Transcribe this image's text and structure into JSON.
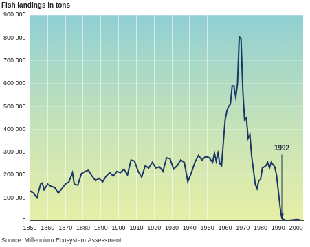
{
  "chart_data": {
    "type": "line",
    "title": "Fish landings in tons",
    "source": "Source: Millennium Ecosystem Assessment",
    "annotations": [
      {
        "text": "1992",
        "x": 1992
      }
    ],
    "series": [
      {
        "name": "Fish landings",
        "color": "#1c3567",
        "x": [
          1850,
          1852,
          1854,
          1856,
          1857,
          1858,
          1860,
          1862,
          1864,
          1866,
          1868,
          1870,
          1872,
          1874,
          1875,
          1877,
          1879,
          1881,
          1883,
          1885,
          1887,
          1889,
          1891,
          1893,
          1895,
          1897,
          1899,
          1901,
          1903,
          1905,
          1907,
          1909,
          1911,
          1913,
          1915,
          1917,
          1919,
          1921,
          1923,
          1925,
          1927,
          1929,
          1931,
          1933,
          1935,
          1937,
          1939,
          1941,
          1943,
          1945,
          1947,
          1949,
          1951,
          1953,
          1954,
          1955,
          1956,
          1957,
          1958,
          1959,
          1960,
          1961,
          1962,
          1963,
          1964,
          1965,
          1966,
          1967,
          1968,
          1969,
          1970,
          1971,
          1972,
          1973,
          1974,
          1975,
          1976,
          1977,
          1978,
          1979,
          1980,
          1981,
          1982,
          1983,
          1984,
          1985,
          1986,
          1987,
          1988,
          1989,
          1990,
          1991,
          1992,
          1993,
          1994,
          1995,
          1996,
          1998,
          2000,
          2002
        ],
        "values": [
          130000,
          120000,
          100000,
          160000,
          165000,
          135000,
          160000,
          150000,
          145000,
          120000,
          140000,
          160000,
          170000,
          210000,
          160000,
          155000,
          205000,
          215000,
          220000,
          195000,
          175000,
          185000,
          170000,
          195000,
          210000,
          195000,
          215000,
          210000,
          225000,
          200000,
          265000,
          260000,
          215000,
          190000,
          240000,
          230000,
          255000,
          230000,
          235000,
          215000,
          275000,
          270000,
          225000,
          240000,
          265000,
          255000,
          170000,
          210000,
          255000,
          285000,
          265000,
          280000,
          275000,
          255000,
          295000,
          260000,
          295000,
          250000,
          240000,
          340000,
          440000,
          480000,
          500000,
          510000,
          590000,
          590000,
          540000,
          600000,
          805000,
          795000,
          570000,
          440000,
          450000,
          360000,
          375000,
          280000,
          220000,
          160000,
          140000,
          175000,
          180000,
          230000,
          235000,
          240000,
          255000,
          230000,
          255000,
          245000,
          235000,
          200000,
          130000,
          60000,
          10000,
          5000,
          2000,
          1000,
          1000,
          3000,
          5000,
          4000
        ]
      }
    ],
    "xlim": [
      1850,
      2004
    ],
    "xticks": [
      1850,
      1860,
      1870,
      1880,
      1890,
      1900,
      1910,
      1920,
      1930,
      1940,
      1950,
      1960,
      1970,
      1980,
      1990,
      2000
    ],
    "ylim": [
      0,
      900000
    ],
    "yticks": [
      0,
      {
        "value": 100000,
        "label": "100 000"
      },
      {
        "value": 200000,
        "label": "200 000"
      },
      {
        "value": 300000,
        "label": "300 000"
      },
      {
        "value": 400000,
        "label": "400 000"
      },
      {
        "value": 500000,
        "label": "500 000"
      },
      {
        "value": 600000,
        "label": "600 000"
      },
      {
        "value": 700000,
        "label": "700 000"
      },
      {
        "value": 800000,
        "label": "800 000"
      },
      {
        "value": 900000,
        "label": "900 000"
      }
    ],
    "grid": true,
    "marker": "none",
    "line_style": "solid"
  }
}
